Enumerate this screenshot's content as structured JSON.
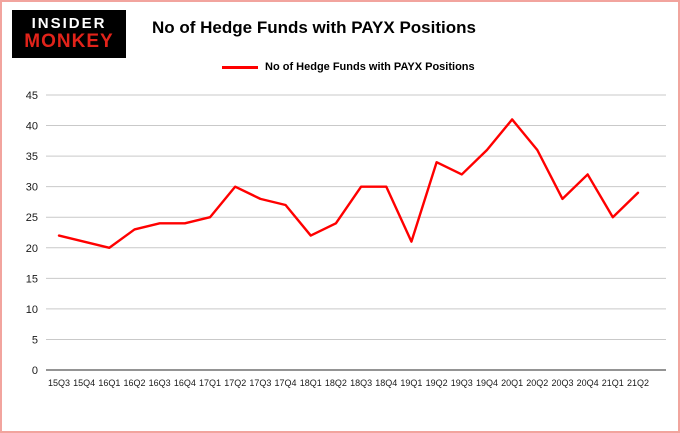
{
  "header": {
    "logo": {
      "line1": "INSIDER",
      "line2": "MONKEY"
    },
    "title": "No of Hedge Funds with PAYX Positions"
  },
  "legend": {
    "label": "No of Hedge Funds with PAYX Positions",
    "color": "#ff0000"
  },
  "chart_data": {
    "type": "line",
    "title": "No of Hedge Funds with PAYX Positions",
    "categories": [
      "15Q3",
      "15Q4",
      "16Q1",
      "16Q2",
      "16Q3",
      "16Q4",
      "17Q1",
      "17Q2",
      "17Q3",
      "17Q4",
      "18Q1",
      "18Q2",
      "18Q3",
      "18Q4",
      "19Q1",
      "19Q2",
      "19Q3",
      "19Q4",
      "20Q1",
      "20Q2",
      "20Q3",
      "20Q4",
      "21Q1",
      "21Q2"
    ],
    "series": [
      {
        "name": "No of Hedge Funds with PAYX Positions",
        "color": "#ff0000",
        "values": [
          22,
          21,
          20,
          23,
          24,
          24,
          25,
          30,
          28,
          27,
          22,
          24,
          30,
          30,
          21,
          34,
          32,
          36,
          41,
          36,
          28,
          32,
          25,
          29
        ]
      }
    ],
    "xlabel": "",
    "ylabel": "",
    "ylim": [
      0,
      45
    ],
    "y_ticks": [
      0,
      5,
      10,
      15,
      20,
      25,
      30,
      35,
      40,
      45
    ],
    "grid": true,
    "legend_position": "top-left"
  },
  "colors": {
    "line_red": "#ff0000",
    "border_pink": "#f2a49e",
    "logo_bg": "#000000",
    "logo_red": "#e2231a",
    "grid_gray": "#c9c9c9",
    "axis_dark": "#555555",
    "label_text": "#1a1a1a"
  }
}
